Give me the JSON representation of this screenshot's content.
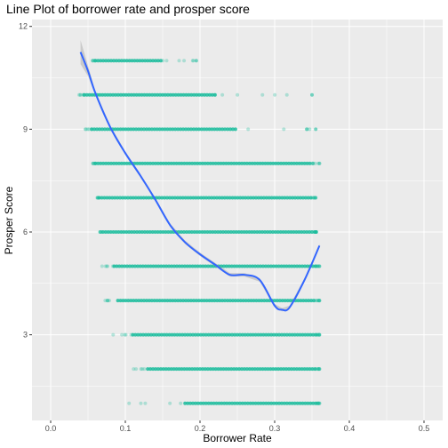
{
  "chart_data": {
    "type": "scatter",
    "title": "Line Plot of borrower rate and prosper score",
    "xlabel": "Borrower Rate",
    "ylabel": "Prosper Score",
    "xlim": [
      -0.025,
      0.525
    ],
    "ylim": [
      0.5,
      12.2
    ],
    "x_ticks": [
      0,
      0.1,
      0.2,
      0.3,
      0.4,
      0.5
    ],
    "x_tick_labels": [
      "0.0",
      "0.1",
      "0.2",
      "0.3",
      "0.4",
      "0.5"
    ],
    "y_ticks": [
      3,
      6,
      9,
      12
    ],
    "y_tick_labels": [
      "3",
      "6",
      "9",
      "12"
    ],
    "grid": true,
    "legend": "none",
    "colors": {
      "points": "#1abc9c",
      "smooth_line": "#3366ff",
      "ribbon": "#999999",
      "panel_bg": "#ebebeb",
      "grid": "#ffffff"
    },
    "score_bands": [
      {
        "score": 1,
        "x_min": 0.105,
        "x_max": 0.36,
        "dense_min": 0.18,
        "dense_max": 0.355
      },
      {
        "score": 2,
        "x_min": 0.105,
        "x_max": 0.36,
        "dense_min": 0.13,
        "dense_max": 0.355
      },
      {
        "score": 3,
        "x_min": 0.08,
        "x_max": 0.36,
        "dense_min": 0.11,
        "dense_max": 0.355
      },
      {
        "score": 4,
        "x_min": 0.07,
        "x_max": 0.36,
        "dense_min": 0.09,
        "dense_max": 0.355
      },
      {
        "score": 5,
        "x_min": 0.065,
        "x_max": 0.36,
        "dense_min": 0.085,
        "dense_max": 0.355
      },
      {
        "score": 6,
        "x_min": 0.065,
        "x_max": 0.355,
        "dense_min": 0.07,
        "dense_max": 0.355
      },
      {
        "score": 7,
        "x_min": 0.06,
        "x_max": 0.355,
        "dense_min": 0.065,
        "dense_max": 0.35
      },
      {
        "score": 8,
        "x_min": 0.055,
        "x_max": 0.36,
        "dense_min": 0.06,
        "dense_max": 0.35
      },
      {
        "score": 9,
        "x_min": 0.045,
        "x_max": 0.355,
        "dense_min": 0.055,
        "dense_max": 0.25
      },
      {
        "score": 10,
        "x_min": 0.038,
        "x_max": 0.35,
        "dense_min": 0.045,
        "dense_max": 0.22
      },
      {
        "score": 11,
        "x_min": 0.055,
        "x_max": 0.195,
        "dense_min": 0.06,
        "dense_max": 0.15
      }
    ],
    "smooth_line": {
      "x": [
        0.04,
        0.05,
        0.06,
        0.08,
        0.1,
        0.12,
        0.14,
        0.16,
        0.18,
        0.2,
        0.22,
        0.24,
        0.26,
        0.28,
        0.3,
        0.31,
        0.32,
        0.34,
        0.36
      ],
      "y": [
        11.25,
        10.7,
        10.05,
        9.05,
        8.3,
        7.65,
        6.95,
        6.2,
        5.7,
        5.35,
        5.05,
        4.75,
        4.75,
        4.6,
        3.85,
        3.73,
        3.8,
        4.6,
        5.6
      ]
    }
  }
}
